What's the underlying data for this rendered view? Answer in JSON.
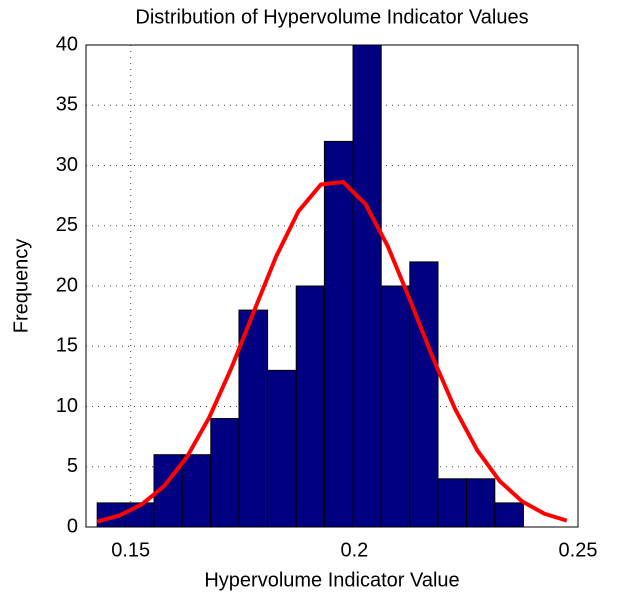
{
  "chart_data": {
    "type": "histogram",
    "title": "Distribution of Hypervolume Indicator Values",
    "x_label": "Hypervolume Indicator Value",
    "y_label": "Frequency",
    "bins": [
      0.1425,
      0.1488,
      0.1552,
      0.1615,
      0.1679,
      0.1742,
      0.1806,
      0.187,
      0.1933,
      0.1997,
      0.206,
      0.2124,
      0.2187,
      0.2251,
      0.2314,
      0.2378
    ],
    "values": [
      2,
      2,
      6,
      6,
      9,
      18,
      13,
      20,
      32,
      40,
      20,
      22,
      4,
      4,
      2
    ],
    "color": "#000080",
    "curve": {
      "type": "line",
      "color": "#ff0000",
      "x": [
        0.1425,
        0.1475,
        0.1525,
        0.1575,
        0.1625,
        0.1675,
        0.1725,
        0.1775,
        0.1825,
        0.1875,
        0.1925,
        0.1975,
        0.2025,
        0.2075,
        0.2125,
        0.2175,
        0.2225,
        0.2275,
        0.2325,
        0.2375,
        0.2425,
        0.2475
      ],
      "values": [
        0.45,
        0.96,
        1.88,
        3.41,
        5.77,
        9.05,
        13.19,
        17.85,
        22.44,
        26.2,
        28.42,
        28.63,
        26.79,
        23.28,
        18.79,
        14.09,
        9.81,
        6.35,
        3.81,
        2.13,
        1.1,
        0.53
      ]
    },
    "xlim": [
      0.14,
      0.25
    ],
    "ylim": [
      0,
      40
    ],
    "xticks": [
      0.15,
      0.2,
      0.25
    ],
    "yticks": [
      0,
      5,
      10,
      15,
      20,
      25,
      30,
      35,
      40
    ],
    "grid": true
  }
}
